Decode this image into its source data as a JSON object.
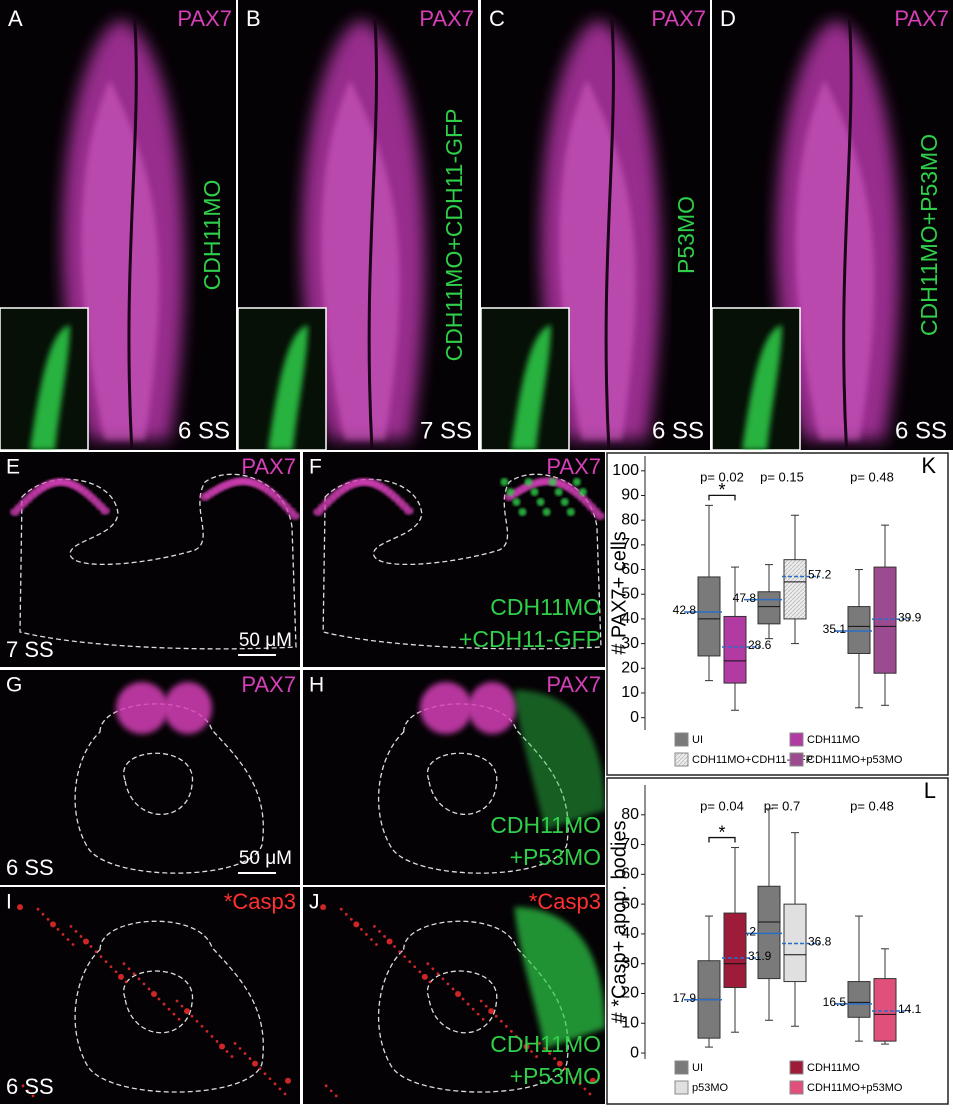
{
  "panels": [
    {
      "letter": "A",
      "stain": "PAX7",
      "treatment": "CDH11MO",
      "stage": "6 SS"
    },
    {
      "letter": "B",
      "stain": "PAX7",
      "treatment": "CDH11MO+CDH11-GFP",
      "stage": "7 SS"
    },
    {
      "letter": "C",
      "stain": "PAX7",
      "treatment": "P53MO",
      "stage": "6 SS"
    },
    {
      "letter": "D",
      "stain": "PAX7",
      "treatment": "CDH11MO+P53MO",
      "stage": "6 SS"
    },
    {
      "letter": "E",
      "stain": "PAX7",
      "stage": "7 SS",
      "scale_bar": "50 μM"
    },
    {
      "letter": "F",
      "stain": "PAX7",
      "treatment": [
        "CDH11MO",
        "+CDH11-GFP"
      ]
    },
    {
      "letter": "G",
      "stain": "PAX7",
      "stage": "6 SS",
      "scale_bar": "50 μM"
    },
    {
      "letter": "H",
      "stain": "PAX7",
      "treatment": [
        "CDH11MO",
        "+P53MO"
      ]
    },
    {
      "letter": "I",
      "stain": "*Casp3",
      "stage": "6 SS"
    },
    {
      "letter": "J",
      "stain": "*Casp3",
      "treatment": [
        "CDH11MO",
        "+P53MO"
      ]
    }
  ],
  "chart_data": [
    {
      "type": "box",
      "letter": "K",
      "ylabel": "# PAX7+ cells",
      "ylim": [
        -5,
        106
      ],
      "yticks": [
        0,
        10,
        20,
        30,
        40,
        50,
        60,
        70,
        80,
        90,
        100
      ],
      "p_values": [
        "p= 0.02",
        "p= 0.15",
        "p= 0.48"
      ],
      "significance": [
        "*",
        null,
        null
      ],
      "series": [
        {
          "name": "UI",
          "color": "#7a7a7a",
          "values": [
            {
              "low": 15,
              "q1": 25,
              "median": 40,
              "q3": 57,
              "high": 86,
              "mean": 42.8
            },
            {
              "low": 32,
              "q1": 38,
              "median": 45,
              "q3": 51,
              "high": 62,
              "mean": 47.8
            },
            {
              "low": 4,
              "q1": 26,
              "median": 37,
              "q3": 45,
              "high": 60,
              "mean": 35.1
            }
          ]
        },
        {
          "name": "CDH11MO",
          "color": "#b23aa3",
          "values": [
            {
              "low": 3,
              "q1": 14,
              "median": 23,
              "q3": 41,
              "high": 61,
              "mean": 28.6
            },
            null,
            null
          ]
        },
        {
          "name": "CDH11MO+CDH11-GFP",
          "color": "#e6e6e6",
          "pattern": "hatch",
          "values": [
            null,
            {
              "low": 30,
              "q1": 40,
              "median": 55,
              "q3": 64,
              "high": 82,
              "mean": 57.2
            },
            null
          ]
        },
        {
          "name": "CDH11MO+p53MO",
          "color": "#9c4b90",
          "values": [
            null,
            null,
            {
              "low": 5,
              "q1": 18,
              "median": 37,
              "q3": 61,
              "high": 78,
              "mean": 39.9
            }
          ]
        }
      ]
    },
    {
      "type": "box",
      "letter": "L",
      "ylabel": "# *Casp+ apop. bodies",
      "ylim": [
        -2,
        90
      ],
      "yticks": [
        0,
        10,
        20,
        30,
        40,
        50,
        60,
        70,
        80
      ],
      "p_values": [
        "p= 0.04",
        "p= 0.7",
        "p= 0.48"
      ],
      "significance": [
        "*",
        null,
        null
      ],
      "series": [
        {
          "name": "UI",
          "color": "#7a7a7a",
          "values": [
            {
              "low": 2,
              "q1": 5,
              "median": 18,
              "q3": 31,
              "high": 46,
              "mean": 17.9
            },
            {
              "low": 11,
              "q1": 25,
              "median": 44,
              "q3": 56,
              "high": 82,
              "mean": 40.2
            },
            {
              "low": 4,
              "q1": 12,
              "median": 17,
              "q3": 24,
              "high": 46,
              "mean": 16.5
            }
          ]
        },
        {
          "name": "CDH11MO",
          "color": "#9e1b3a",
          "values": [
            {
              "low": 7,
              "q1": 22,
              "median": 30,
              "q3": 47,
              "high": 69,
              "mean": 31.9
            },
            null,
            null
          ]
        },
        {
          "name": "p53MO",
          "color": "#e0e0e0",
          "values": [
            null,
            {
              "low": 9,
              "q1": 24,
              "median": 33,
              "q3": 50,
              "high": 74,
              "mean": 36.8
            },
            null
          ]
        },
        {
          "name": "CDH11MO+p53MO",
          "color": "#e0507a",
          "values": [
            null,
            null,
            {
              "low": 3,
              "q1": 4,
              "median": 13,
              "q3": 25,
              "high": 35,
              "mean": 14.1
            }
          ]
        }
      ]
    }
  ]
}
